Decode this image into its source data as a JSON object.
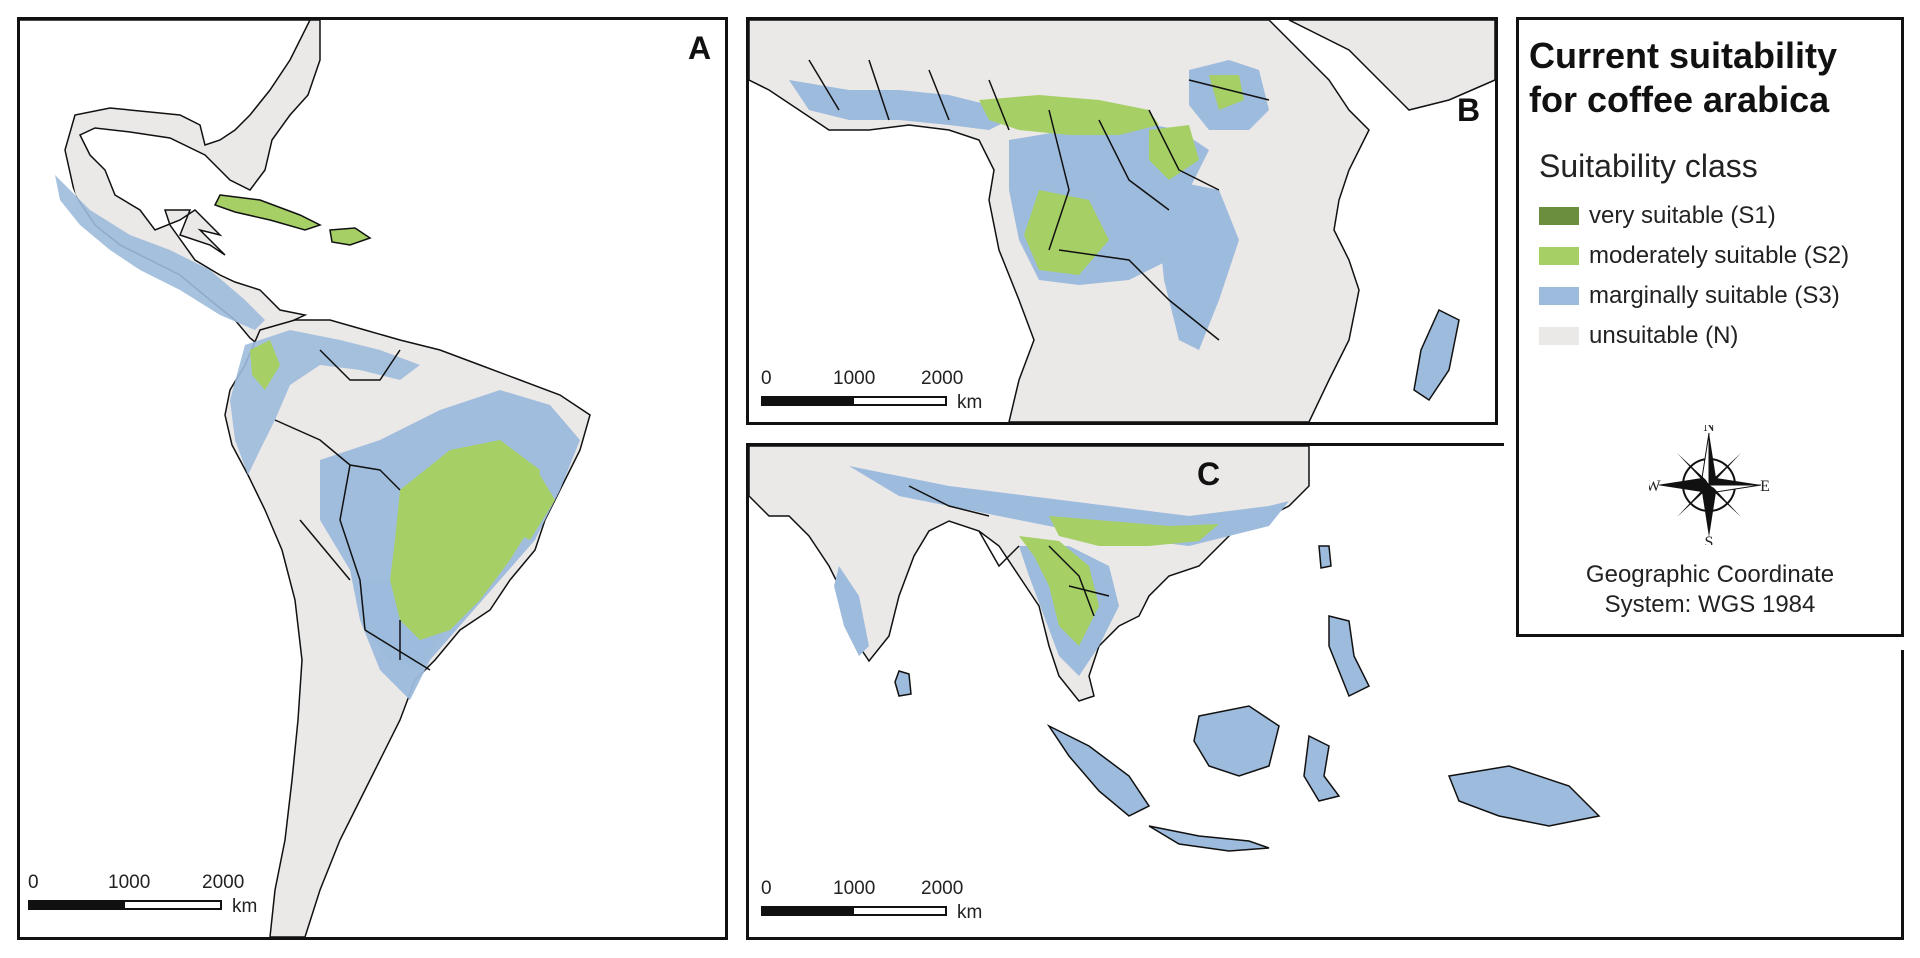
{
  "panels": {
    "a": {
      "label": "A"
    },
    "b": {
      "label": "B"
    },
    "c": {
      "label": "C"
    }
  },
  "scalebar": {
    "ticks": [
      "0",
      "1000",
      "2000"
    ],
    "unit": "km"
  },
  "legend": {
    "title_line1": "Current suitability",
    "title_line2": "for coffee arabica",
    "subtitle": "Suitability class",
    "classes": [
      {
        "label": "very suitable (S1)",
        "color": "#6b8e3e"
      },
      {
        "label": "moderately suitable (S2)",
        "color": "#a6cf66"
      },
      {
        "label": "marginally suitable (S3)",
        "color": "#9dbbdc"
      },
      {
        "label": "unsuitable (N)",
        "color": "#ebe8e8"
      }
    ],
    "compass": {
      "n": "N",
      "s": "S",
      "e": "E",
      "w": "W"
    },
    "crs_line1": "Geographic Coordinate",
    "crs_line2": "System: WGS 1984"
  },
  "colors": {
    "land": "#ebe8e8",
    "s3": "#9dbbdc",
    "s2": "#a6cf66",
    "s1": "#6b8e3e",
    "ocean": "#ffffff",
    "border": "#111111"
  }
}
